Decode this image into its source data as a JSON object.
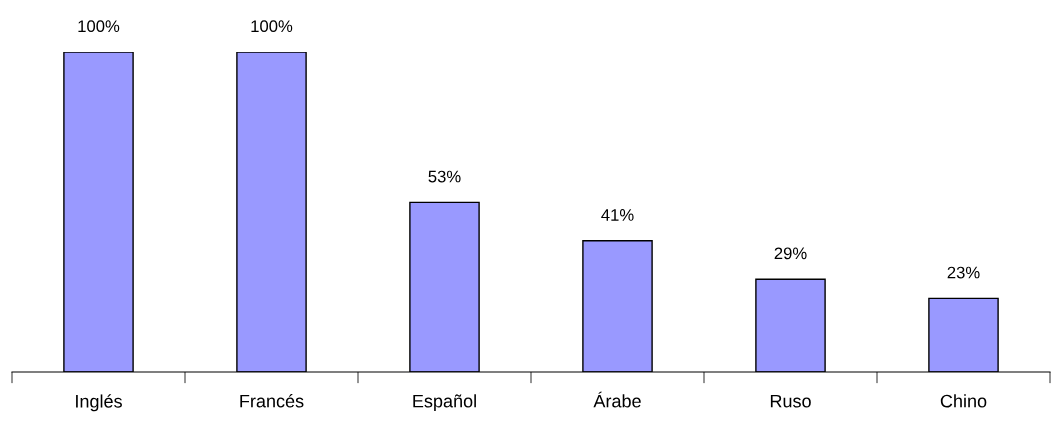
{
  "chart_data": {
    "type": "bar",
    "categories": [
      "Inglés",
      "Francés",
      "Español",
      "Árabe",
      "Ruso",
      "Chino"
    ],
    "values": [
      100,
      100,
      53,
      41,
      29,
      23
    ],
    "value_labels": [
      "100%",
      "100%",
      "53%",
      "41%",
      "29%",
      "23%"
    ],
    "color": "#9999ff",
    "grid": false,
    "legend": false
  }
}
